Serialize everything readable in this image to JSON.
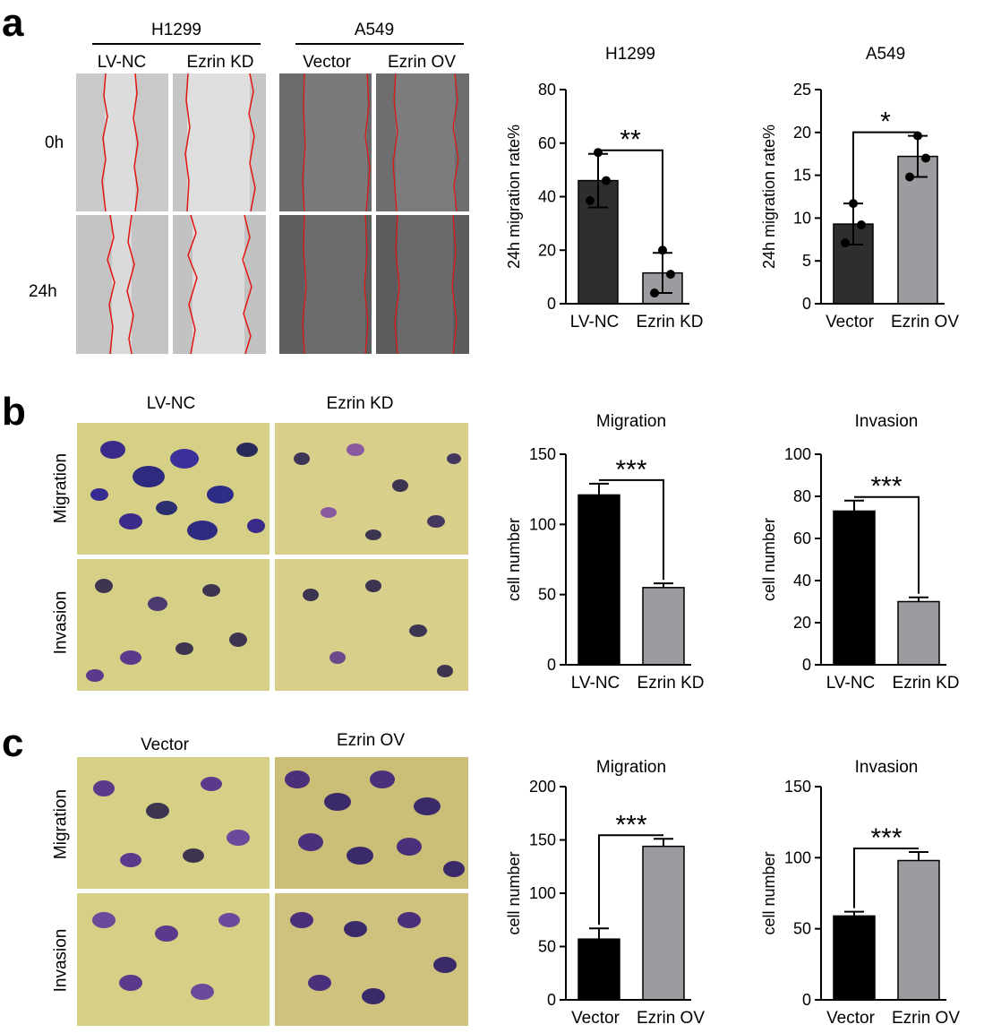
{
  "panels": {
    "a": {
      "letter": "a",
      "group1": "H1299",
      "group2": "A549",
      "col_labels": [
        "LV-NC",
        "Ezrin KD",
        "Vector",
        "Ezrin OV"
      ],
      "row_labels": [
        "0h",
        "24h"
      ]
    },
    "b": {
      "letter": "b",
      "col_labels": [
        "LV-NC",
        "Ezrin KD"
      ],
      "row_labels": [
        "Migration",
        "Invasion"
      ]
    },
    "c": {
      "letter": "c",
      "col_labels": [
        "Vector",
        "Ezrin OV"
      ],
      "row_labels": [
        "Migration",
        "Invasion"
      ]
    }
  },
  "colors": {
    "bar_dark": "#2e2e2e",
    "bar_black": "#000000",
    "bar_grey": "#9b9ba0",
    "wound_line": "#e3140f"
  },
  "chart_data": [
    {
      "id": "a1",
      "type": "bar",
      "title": "H1299",
      "categories": [
        "LV-NC",
        "Ezrin KD"
      ],
      "values": [
        46,
        11.5
      ],
      "errors": [
        10,
        7.5
      ],
      "points": [
        [
          56.5,
          46,
          38.5
        ],
        [
          20,
          11,
          4
        ]
      ],
      "xlabel": "",
      "ylabel": "24h migration rate%",
      "ylim": [
        0,
        80
      ],
      "yticks": [
        0,
        20,
        40,
        60,
        80
      ],
      "significance": "**",
      "bar_colors": [
        "#2e2e2e",
        "#9b9ba0"
      ]
    },
    {
      "id": "a2",
      "type": "bar",
      "title": "A549",
      "categories": [
        "Vector",
        "Ezrin OV"
      ],
      "values": [
        9.3,
        17.2
      ],
      "errors": [
        2.4,
        2.4
      ],
      "points": [
        [
          11.7,
          9.2,
          7.1
        ],
        [
          19.6,
          17,
          14.8
        ]
      ],
      "xlabel": "",
      "ylabel": "24h migration rate%",
      "ylim": [
        0,
        25
      ],
      "yticks": [
        0,
        5,
        10,
        15,
        20,
        25
      ],
      "significance": "*",
      "bar_colors": [
        "#2e2e2e",
        "#9b9ba0"
      ]
    },
    {
      "id": "b1",
      "type": "bar",
      "title": "Migration",
      "categories": [
        "LV-NC",
        "Ezrin KD"
      ],
      "values": [
        121,
        55
      ],
      "errors": [
        8,
        3
      ],
      "xlabel": "",
      "ylabel": "cell number",
      "ylim": [
        0,
        150
      ],
      "yticks": [
        0,
        50,
        100,
        150
      ],
      "significance": "***",
      "bar_colors": [
        "#000000",
        "#9b9ba0"
      ]
    },
    {
      "id": "b2",
      "type": "bar",
      "title": "Invasion",
      "categories": [
        "LV-NC",
        "Ezrin KD"
      ],
      "values": [
        73,
        30
      ],
      "errors": [
        5,
        2
      ],
      "xlabel": "",
      "ylabel": "cell number",
      "ylim": [
        0,
        100
      ],
      "yticks": [
        0,
        20,
        40,
        60,
        80,
        100
      ],
      "significance": "***",
      "bar_colors": [
        "#000000",
        "#9b9ba0"
      ]
    },
    {
      "id": "c1",
      "type": "bar",
      "title": "Migration",
      "categories": [
        "Vector",
        "Ezrin OV"
      ],
      "values": [
        57,
        144
      ],
      "errors": [
        10,
        7
      ],
      "xlabel": "",
      "ylabel": "cell number",
      "ylim": [
        0,
        200
      ],
      "yticks": [
        0,
        50,
        100,
        150,
        200
      ],
      "significance": "***",
      "bar_colors": [
        "#000000",
        "#9b9ba0"
      ]
    },
    {
      "id": "c2",
      "type": "bar",
      "title": "Invasion",
      "categories": [
        "Vector",
        "Ezrin OV"
      ],
      "values": [
        59,
        98
      ],
      "errors": [
        3,
        6
      ],
      "xlabel": "",
      "ylabel": "cell number",
      "ylim": [
        0,
        150
      ],
      "yticks": [
        0,
        50,
        100,
        150
      ],
      "significance": "***",
      "bar_colors": [
        "#000000",
        "#9b9ba0"
      ]
    }
  ]
}
